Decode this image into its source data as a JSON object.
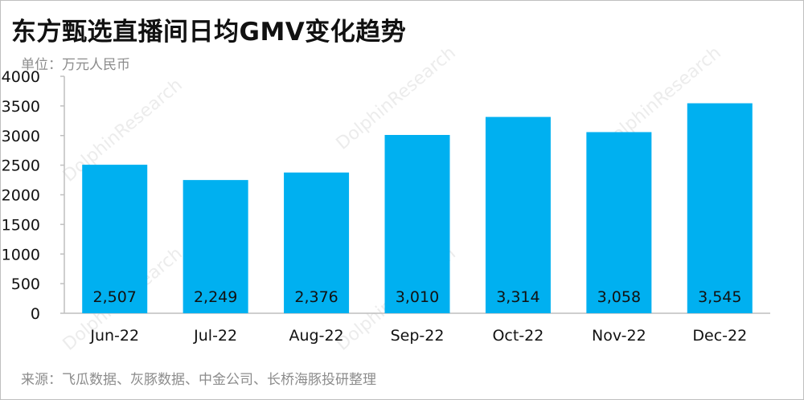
{
  "header": {
    "title": "东方甄选直播间日均GMV变化趋势",
    "unit": "单位：万元人民币"
  },
  "footer": {
    "source": "来源：飞瓜数据、灰豚数据、中金公司、长桥海豚投研整理"
  },
  "watermark": {
    "text": "DolphinResearch"
  },
  "colors": {
    "bar": "#00b0f0",
    "axis": "#bfbfbf"
  },
  "chart_data": {
    "type": "bar",
    "title": "东方甄选直播间日均GMV变化趋势",
    "ylabel": "单位：万元人民币",
    "xlabel": "",
    "categories": [
      "Jun-22",
      "Jul-22",
      "Aug-22",
      "Sep-22",
      "Oct-22",
      "Nov-22",
      "Dec-22"
    ],
    "values": [
      2507,
      2249,
      2376,
      3010,
      3314,
      3058,
      3545
    ],
    "value_labels": [
      "2,507",
      "2,249",
      "2,376",
      "3,010",
      "3,314",
      "3,058",
      "3,545"
    ],
    "ylim": [
      0,
      4000
    ],
    "yticks": [
      0,
      500,
      1000,
      1500,
      2000,
      2500,
      3000,
      3500,
      4000
    ],
    "grid": false,
    "legend": "none"
  }
}
